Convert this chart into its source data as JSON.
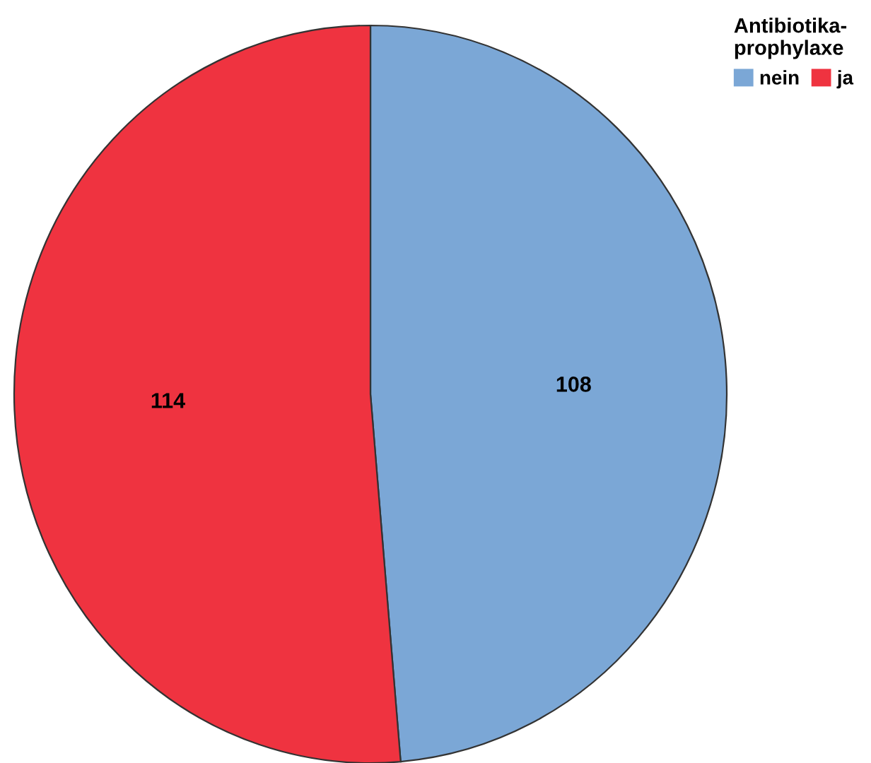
{
  "chart_data": {
    "type": "pie",
    "legend_title": "Antibiotika-\nprophylaxe",
    "categories": [
      "nein",
      "ja"
    ],
    "values": [
      108,
      114
    ],
    "colors": [
      "#7ba7d6",
      "#ef3340"
    ],
    "data_labels": true,
    "legend": "top right"
  }
}
